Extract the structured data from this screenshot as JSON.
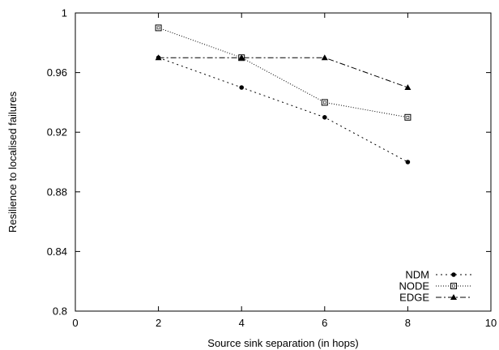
{
  "chart_data": {
    "type": "line",
    "title": "",
    "xlabel": "Source sink separation (in hops)",
    "ylabel": "Resilience to localised failures",
    "xlim": [
      0,
      10
    ],
    "ylim": [
      0.8,
      1.0
    ],
    "xticks": [
      0,
      2,
      4,
      6,
      8,
      10
    ],
    "yticks": [
      0.8,
      0.84,
      0.88,
      0.92,
      0.96,
      1.0
    ],
    "xtick_labels": [
      "0",
      "2",
      "4",
      "6",
      "8",
      "10"
    ],
    "ytick_labels": [
      "0.8",
      "0.84",
      "0.88",
      "0.92",
      "0.96",
      "1"
    ],
    "grid": false,
    "legend_position": "bottom-right",
    "series": [
      {
        "name": "NDM",
        "x": [
          2,
          4,
          6,
          8
        ],
        "y": [
          0.97,
          0.95,
          0.93,
          0.9
        ],
        "marker": "filled-circle",
        "dash": "dotted-sparse",
        "color": "#000000"
      },
      {
        "name": "NODE",
        "x": [
          2,
          4,
          6,
          8
        ],
        "y": [
          0.99,
          0.97,
          0.94,
          0.93
        ],
        "marker": "open-square",
        "dash": "dotted-fine",
        "color": "#000000"
      },
      {
        "name": "EDGE",
        "x": [
          2,
          4,
          6,
          8
        ],
        "y": [
          0.97,
          0.97,
          0.97,
          0.95
        ],
        "marker": "filled-triangle",
        "dash": "dash-dot",
        "color": "#000000"
      }
    ]
  }
}
